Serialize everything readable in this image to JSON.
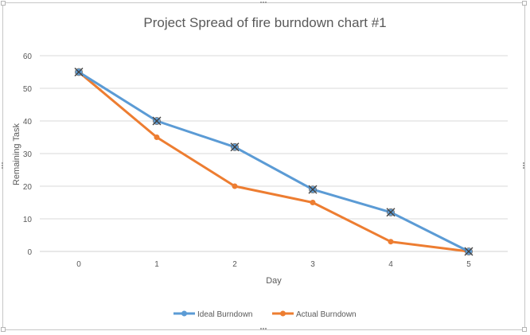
{
  "chart_data": {
    "type": "line",
    "title": "Project Spread of fire burndown chart #1",
    "xlabel": "Day",
    "ylabel": "Remaining Task",
    "categories": [
      "0",
      "1",
      "2",
      "3",
      "4",
      "5"
    ],
    "yticks": [
      0,
      10,
      20,
      30,
      40,
      50,
      60
    ],
    "ylim": [
      0,
      60
    ],
    "grid": true,
    "legend_position": "bottom",
    "series": [
      {
        "name": "Ideal Burndown",
        "color": "#5b9bd5",
        "marker": "x-circle",
        "values": [
          55,
          40,
          32,
          19,
          12,
          0
        ]
      },
      {
        "name": "Actual Burndown",
        "color": "#ed7d31",
        "marker": "circle",
        "values": [
          55,
          35,
          20,
          15,
          3,
          0
        ]
      }
    ]
  }
}
